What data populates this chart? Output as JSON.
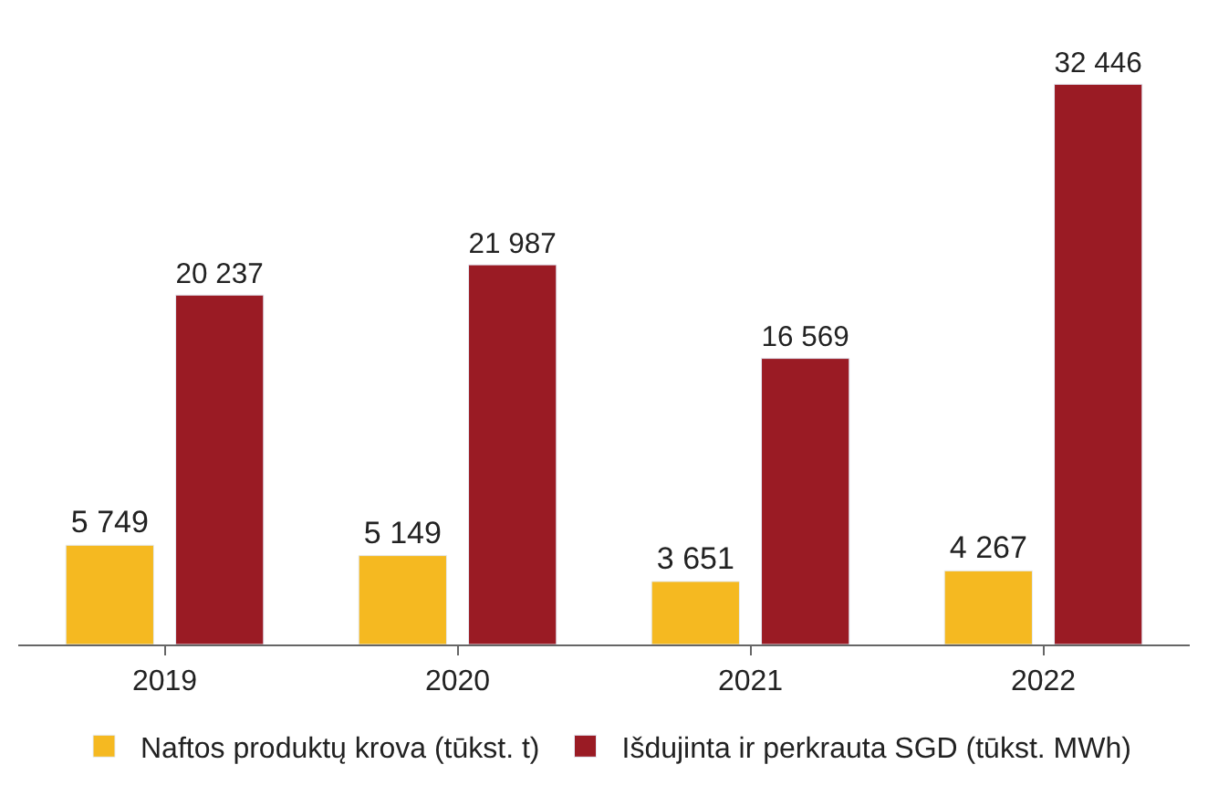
{
  "chart_data": {
    "type": "bar",
    "categories": [
      "2019",
      "2020",
      "2021",
      "2022"
    ],
    "series": [
      {
        "name": "Naftos produktų krova (tūkst. t)",
        "color": "#f5b921",
        "values": [
          5749,
          5149,
          3651,
          4267
        ],
        "value_labels": [
          "5 749",
          "5 149",
          "3 651",
          "4 267"
        ]
      },
      {
        "name": "Išdujinta ir perkrauta SGD (tūkst. MWh)",
        "color": "#9a1b24",
        "values": [
          20237,
          21987,
          16569,
          32446
        ],
        "value_labels": [
          "20 237",
          "21 987",
          "16 569",
          "32 446"
        ]
      }
    ],
    "legend": "bottom"
  }
}
